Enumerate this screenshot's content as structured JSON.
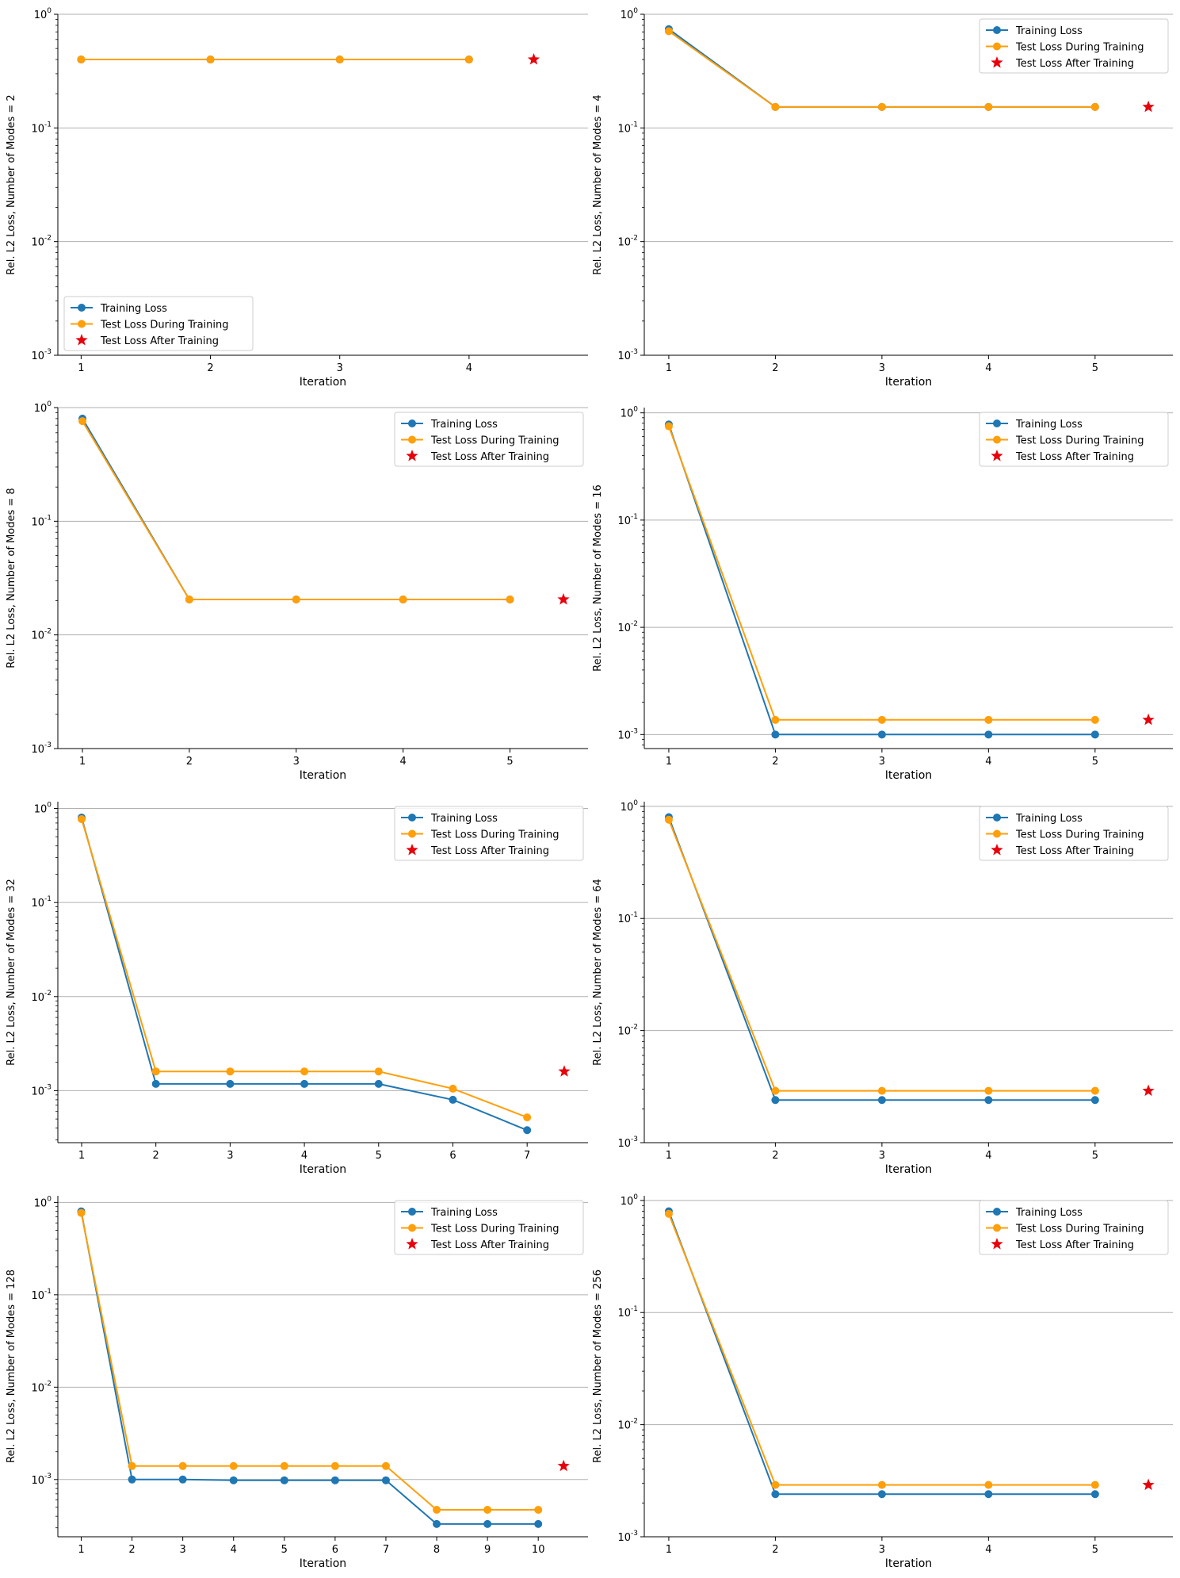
{
  "colors": {
    "training": "#1f77b4",
    "test_during": "#ff9f0a",
    "test_after": "#e8000b",
    "grid": "#b0b0b0"
  },
  "legend_labels": [
    "Training Loss",
    "Test Loss During Training",
    "Test Loss After Training"
  ],
  "chart_data": [
    {
      "type": "line",
      "yscale": "log",
      "xlabel": "Iteration",
      "ylabel": "Rel. L2 Loss, Number of Modes = 2",
      "ylim": [
        0.001,
        1
      ],
      "xlim": [
        0.82,
        4.92
      ],
      "x": [
        1,
        2,
        3,
        4
      ],
      "series": [
        {
          "name": "Training Loss",
          "values": [
            0.4,
            0.4,
            0.4,
            0.4
          ]
        },
        {
          "name": "Test Loss During Training",
          "values": [
            0.4,
            0.4,
            0.4,
            0.4
          ]
        }
      ],
      "test_after": {
        "x": 4.5,
        "value": 0.4
      },
      "legend": "lower-left",
      "grid": "y"
    },
    {
      "type": "line",
      "yscale": "log",
      "xlabel": "Iteration",
      "ylabel": "Rel. L2 Loss, Number of Modes = 4",
      "ylim": [
        0.001,
        1
      ],
      "xlim": [
        0.77,
        5.73
      ],
      "x": [
        1,
        2,
        3,
        4,
        5
      ],
      "series": [
        {
          "name": "Training Loss",
          "values": [
            0.74,
            0.153,
            0.153,
            0.153,
            0.153
          ]
        },
        {
          "name": "Test Loss During Training",
          "values": [
            0.71,
            0.153,
            0.153,
            0.153,
            0.153
          ]
        }
      ],
      "test_after": {
        "x": 5.5,
        "value": 0.153
      },
      "legend": "top-right",
      "grid": "y"
    },
    {
      "type": "line",
      "yscale": "log",
      "xlabel": "Iteration",
      "ylabel": "Rel. L2 Loss, Number of Modes = 8",
      "ylim": [
        0.001,
        1
      ],
      "xlim": [
        0.77,
        5.73
      ],
      "x": [
        1,
        2,
        3,
        4,
        5
      ],
      "series": [
        {
          "name": "Training Loss",
          "values": [
            0.8,
            0.0205,
            0.0205,
            0.0205,
            0.0205
          ]
        },
        {
          "name": "Test Loss During Training",
          "values": [
            0.76,
            0.0205,
            0.0205,
            0.0205,
            0.0205
          ]
        }
      ],
      "test_after": {
        "x": 5.5,
        "value": 0.0205
      },
      "legend": "top-right",
      "grid": "y"
    },
    {
      "type": "line",
      "yscale": "log",
      "xlabel": "Iteration",
      "ylabel": "Rel. L2 Loss, Number of Modes = 16",
      "ylim": [
        0.00074,
        1.12
      ],
      "xlim": [
        0.77,
        5.73
      ],
      "x": [
        1,
        2,
        3,
        4,
        5
      ],
      "series": [
        {
          "name": "Training Loss",
          "values": [
            0.78,
            0.001,
            0.001,
            0.001,
            0.001
          ]
        },
        {
          "name": "Test Loss During Training",
          "values": [
            0.75,
            0.00137,
            0.00137,
            0.00137,
            0.00137
          ]
        }
      ],
      "test_after": {
        "x": 5.5,
        "value": 0.00137
      },
      "legend": "top-right",
      "grid": "y"
    },
    {
      "type": "line",
      "yscale": "log",
      "xlabel": "Iteration",
      "ylabel": "Rel. L2 Loss, Number of Modes = 32",
      "ylim": [
        0.00028,
        1.18
      ],
      "xlim": [
        0.68,
        7.82
      ],
      "x": [
        1,
        2,
        3,
        4,
        5,
        6,
        7
      ],
      "series": [
        {
          "name": "Training Loss",
          "values": [
            0.8,
            0.00118,
            0.00118,
            0.00118,
            0.00118,
            0.0008,
            0.00038
          ]
        },
        {
          "name": "Test Loss During Training",
          "values": [
            0.77,
            0.0016,
            0.0016,
            0.0016,
            0.0016,
            0.00105,
            0.00052
          ]
        }
      ],
      "test_after": {
        "x": 7.5,
        "value": 0.0016
      },
      "legend": "top-right",
      "grid": "y"
    },
    {
      "type": "line",
      "yscale": "log",
      "xlabel": "Iteration",
      "ylabel": "Rel. L2 Loss, Number of Modes = 64",
      "ylim": [
        0.001,
        1.1
      ],
      "xlim": [
        0.77,
        5.73
      ],
      "x": [
        1,
        2,
        3,
        4,
        5
      ],
      "series": [
        {
          "name": "Training Loss",
          "values": [
            0.8,
            0.0024,
            0.0024,
            0.0024,
            0.0024
          ]
        },
        {
          "name": "Test Loss During Training",
          "values": [
            0.76,
            0.0029,
            0.0029,
            0.0029,
            0.0029
          ]
        }
      ],
      "test_after": {
        "x": 5.5,
        "value": 0.0029
      },
      "legend": "top-right",
      "grid": "y"
    },
    {
      "type": "line",
      "yscale": "log",
      "xlabel": "Iteration",
      "ylabel": "Rel. L2 Loss, Number of Modes = 128",
      "ylim": [
        0.00024,
        1.18
      ],
      "xlim": [
        0.54,
        10.98
      ],
      "x": [
        1,
        2,
        3,
        4,
        5,
        6,
        7,
        8,
        9,
        10
      ],
      "series": [
        {
          "name": "Training Loss",
          "values": [
            0.8,
            0.001,
            0.001,
            0.00098,
            0.00098,
            0.00098,
            0.00098,
            0.00033,
            0.00033,
            0.00033
          ]
        },
        {
          "name": "Test Loss During Training",
          "values": [
            0.77,
            0.0014,
            0.0014,
            0.0014,
            0.0014,
            0.0014,
            0.0014,
            0.00047,
            0.00047,
            0.00047
          ]
        }
      ],
      "test_after": {
        "x": 10.5,
        "value": 0.0014
      },
      "legend": "top-right",
      "grid": "y"
    },
    {
      "type": "line",
      "yscale": "log",
      "xlabel": "Iteration",
      "ylabel": "Rel. L2 Loss, Number of Modes = 256",
      "ylim": [
        0.001,
        1.1
      ],
      "xlim": [
        0.77,
        5.73
      ],
      "x": [
        1,
        2,
        3,
        4,
        5
      ],
      "series": [
        {
          "name": "Training Loss",
          "values": [
            0.8,
            0.0024,
            0.0024,
            0.0024,
            0.0024
          ]
        },
        {
          "name": "Test Loss During Training",
          "values": [
            0.76,
            0.0029,
            0.0029,
            0.0029,
            0.0029
          ]
        }
      ],
      "test_after": {
        "x": 5.5,
        "value": 0.0029
      },
      "legend": "top-right",
      "grid": "y"
    }
  ]
}
